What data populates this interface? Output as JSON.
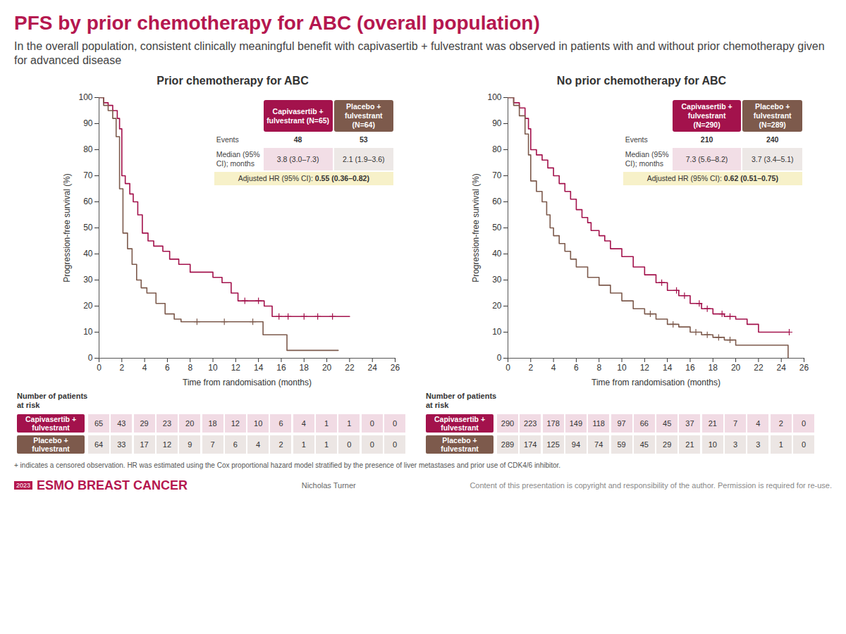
{
  "title": "PFS by prior chemotherapy for ABC (overall population)",
  "subtitle": "In the overall population, consistent clinically meaningful benefit with capivasertib + fulvestrant was observed in patients with and without prior chemotherapy given for advanced disease",
  "footnote": "+ indicates a censored observation. HR was estimated using the Cox proportional hazard model stratified by the presence of liver metastases and prior use of CDK4/6 inhibitor.",
  "footer": {
    "year": "2023",
    "event": "ESMO BREAST CANCER",
    "presenter": "Nicholas Turner",
    "notice": "Content of this presentation is copyright and responsibility of the author. Permission is required for re-use."
  },
  "chart_data": [
    {
      "type": "line",
      "title": "Prior chemotherapy for ABC",
      "x_label": "Time from randomisation (months)",
      "y_label": "Progression-free survival (%)",
      "xlim": [
        0,
        26
      ],
      "xticks": [
        0,
        2,
        4,
        6,
        8,
        10,
        12,
        14,
        16,
        18,
        20,
        22,
        24,
        26
      ],
      "ylim": [
        0,
        100
      ],
      "yticks": [
        0,
        10,
        20,
        30,
        40,
        50,
        60,
        70,
        80,
        90,
        100
      ],
      "grid": false,
      "at_risk_title": "Number of patients at risk",
      "stats": {
        "events_label": "Events",
        "median_label": "Median (95% CI); months",
        "hr_label": "Adjusted HR (95% CI):",
        "hr": "0.55 (0.36–0.82)"
      },
      "series": [
        {
          "name": "Capivasertib + fulvestrant",
          "header": "Capivasertib + fulvestrant (N=65)",
          "color": "#a3124c",
          "line_style": "step",
          "marker": "plus",
          "x": [
            0,
            0.4,
            0.8,
            1.2,
            1.6,
            1.8,
            2,
            2.3,
            2.7,
            3,
            3.4,
            3.8,
            4.3,
            4.8,
            5.6,
            6.2,
            7,
            8,
            10,
            10.8,
            11.6,
            12.2,
            14.5,
            15.2,
            22
          ],
          "values": [
            100,
            98,
            97,
            95,
            92,
            88,
            70,
            67,
            63,
            60,
            55,
            48,
            45,
            43,
            41,
            38,
            36,
            33,
            31,
            29,
            25,
            22,
            20,
            16,
            16
          ],
          "censored": {
            "x": [
              12.8,
              14,
              15.8,
              16.6,
              18,
              19.2,
              20.5
            ],
            "values": [
              22,
              22,
              16,
              16,
              16,
              16,
              16
            ]
          },
          "events": 48,
          "median_label": "3.8 (3.0–7.3)",
          "at_risk": [
            65,
            43,
            29,
            23,
            20,
            18,
            12,
            10,
            6,
            4,
            1,
            1,
            0,
            0
          ]
        },
        {
          "name": "Placebo + fulvestrant",
          "header": "Placebo + fulvestrant (N=64)",
          "color": "#7d5a4c",
          "line_style": "step",
          "marker": "plus",
          "x": [
            0,
            0.4,
            0.8,
            1.2,
            1.5,
            1.8,
            2.1,
            2.5,
            2.9,
            3.3,
            3.7,
            4.2,
            5,
            5.8,
            6.6,
            7.2,
            14.4,
            16.5,
            21
          ],
          "values": [
            100,
            97,
            95,
            92,
            85,
            65,
            48,
            42,
            36,
            30,
            27,
            25,
            21,
            17,
            15,
            14,
            9,
            3,
            3
          ],
          "censored": {
            "x": [
              8.6,
              11,
              13.5
            ],
            "values": [
              14,
              14,
              14
            ]
          },
          "events": 53,
          "median_label": "2.1 (1.9–3.6)",
          "at_risk": [
            64,
            33,
            17,
            12,
            9,
            7,
            6,
            4,
            2,
            1,
            1,
            0,
            0,
            0
          ]
        }
      ]
    },
    {
      "type": "line",
      "title": "No prior chemotherapy for ABC",
      "x_label": "Time from randomisation (months)",
      "y_label": "Progression-free survival (%)",
      "xlim": [
        0,
        26
      ],
      "xticks": [
        0,
        2,
        4,
        6,
        8,
        10,
        12,
        14,
        16,
        18,
        20,
        22,
        24,
        26
      ],
      "ylim": [
        0,
        100
      ],
      "yticks": [
        0,
        10,
        20,
        30,
        40,
        50,
        60,
        70,
        80,
        90,
        100
      ],
      "grid": false,
      "at_risk_title": "Number of patients at risk",
      "stats": {
        "events_label": "Events",
        "median_label": "Median (95% CI); months",
        "hr_label": "Adjusted HR (95% CI):",
        "hr": "0.62 (0.51–0.75)"
      },
      "series": [
        {
          "name": "Capivasertib + fulvestrant",
          "header": "Capivasertib + fulvestrant (N=290)",
          "color": "#a3124c",
          "line_style": "step",
          "marker": "plus",
          "x": [
            0,
            0.5,
            1,
            1.5,
            1.8,
            2,
            2.5,
            3,
            3.5,
            4,
            4.5,
            5,
            5.5,
            6,
            6.5,
            7,
            7.3,
            8,
            8.5,
            9,
            10,
            11,
            12,
            13,
            14,
            15,
            16,
            17,
            18,
            19,
            20,
            21,
            22,
            24.7
          ],
          "values": [
            100,
            98,
            96,
            92,
            88,
            80,
            78,
            76,
            73,
            70,
            67,
            64,
            61,
            57,
            54,
            52,
            49,
            47,
            45,
            42,
            39,
            35,
            32,
            29,
            26,
            24,
            21,
            19,
            17,
            16,
            15,
            13,
            10,
            10
          ],
          "censored": {
            "x": [
              13.5,
              14.8,
              15.5,
              16.8,
              17.5,
              18.8,
              19.5,
              24.7
            ],
            "values": [
              29,
              26,
              24,
              21,
              19,
              17,
              16,
              10
            ]
          },
          "events": 210,
          "median_label": "7.3 (5.6–8.2)",
          "at_risk": [
            290,
            223,
            178,
            149,
            118,
            97,
            66,
            45,
            37,
            21,
            7,
            4,
            2,
            0
          ]
        },
        {
          "name": "Placebo + fulvestrant",
          "header": "Placebo + fulvestrant (N=289)",
          "color": "#7d5a4c",
          "line_style": "step",
          "marker": "plus",
          "x": [
            0,
            0.5,
            1,
            1.5,
            1.8,
            2,
            2.5,
            3,
            3.4,
            3.7,
            4,
            4.5,
            5,
            5.5,
            6,
            7,
            8,
            9,
            10,
            11,
            12,
            13,
            14,
            15,
            16,
            17,
            18,
            19,
            20,
            24.6
          ],
          "values": [
            100,
            97,
            93,
            86,
            78,
            68,
            64,
            60,
            55,
            50,
            47,
            44,
            41,
            38,
            35,
            31,
            28,
            25,
            22,
            19,
            17,
            15,
            13,
            12,
            10,
            9,
            8,
            7,
            5,
            0
          ],
          "censored": {
            "x": [
              12.5,
              14.5,
              16.5,
              17.5,
              18.5,
              19.5
            ],
            "values": [
              17,
              13,
              10,
              9,
              8,
              7
            ]
          },
          "events": 240,
          "median_label": "3.7 (3.4–5.1)",
          "at_risk": [
            289,
            174,
            125,
            94,
            74,
            59,
            45,
            29,
            21,
            10,
            3,
            3,
            1,
            0
          ]
        }
      ]
    }
  ]
}
